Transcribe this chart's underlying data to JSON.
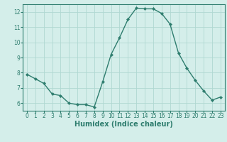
{
  "x": [
    0,
    1,
    2,
    3,
    4,
    5,
    6,
    7,
    8,
    9,
    10,
    11,
    12,
    13,
    14,
    15,
    16,
    17,
    18,
    19,
    20,
    21,
    22,
    23
  ],
  "y": [
    7.9,
    7.6,
    7.3,
    6.6,
    6.5,
    6.0,
    5.9,
    5.9,
    5.75,
    7.4,
    9.2,
    10.3,
    11.5,
    12.25,
    12.2,
    12.2,
    11.9,
    11.2,
    9.3,
    8.3,
    7.5,
    6.8,
    6.2,
    6.4
  ],
  "line_color": "#2e7d6e",
  "marker": "D",
  "marker_size": 2.2,
  "bg_color": "#d4eeea",
  "grid_color": "#b0d8d2",
  "xlabel": "Humidex (Indice chaleur)",
  "xlim": [
    -0.5,
    23.5
  ],
  "ylim": [
    5.5,
    12.5
  ],
  "yticks": [
    6,
    7,
    8,
    9,
    10,
    11,
    12
  ],
  "xticks": [
    0,
    1,
    2,
    3,
    4,
    5,
    6,
    7,
    8,
    9,
    10,
    11,
    12,
    13,
    14,
    15,
    16,
    17,
    18,
    19,
    20,
    21,
    22,
    23
  ],
  "tick_fontsize": 5.5,
  "xlabel_fontsize": 7.0,
  "linewidth": 1.0
}
